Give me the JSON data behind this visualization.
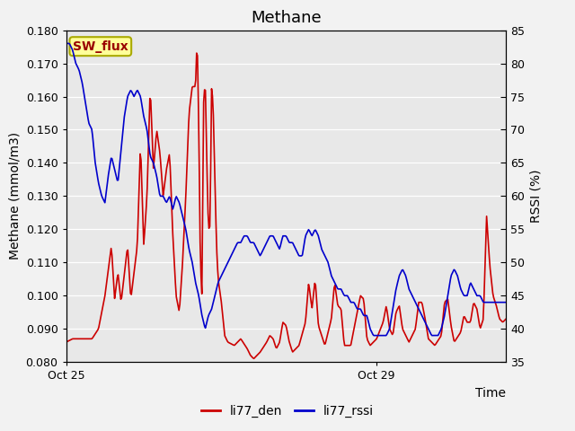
{
  "title": "Methane",
  "ylabel_left": "Methane (mmol/m3)",
  "ylabel_right": "RSSI (%)",
  "xlabel": "Time",
  "ylim_left": [
    0.08,
    0.18
  ],
  "ylim_right": [
    35,
    85
  ],
  "yticks_left": [
    0.08,
    0.09,
    0.1,
    0.11,
    0.12,
    0.13,
    0.14,
    0.15,
    0.16,
    0.17,
    0.18
  ],
  "yticks_right": [
    35,
    40,
    45,
    50,
    55,
    60,
    65,
    70,
    75,
    80,
    85
  ],
  "xtick_labels": [
    "Oct 25",
    "Oct 29"
  ],
  "xtick_positions": [
    0,
    96
  ],
  "xlim": [
    0,
    136
  ],
  "plot_bg_color": "#e8e8e8",
  "fig_bg_color": "#f2f2f2",
  "line_red_color": "#cc0000",
  "line_blue_color": "#0000cc",
  "sw_flux_bg": "#ffff99",
  "sw_flux_border": "#aaaa00",
  "sw_flux_text": "#990000",
  "legend_labels": [
    "li77_den",
    "li77_rssi"
  ],
  "title_fontsize": 13,
  "axis_label_fontsize": 10,
  "tick_fontsize": 9,
  "legend_fontsize": 10,
  "line_width": 1.2
}
